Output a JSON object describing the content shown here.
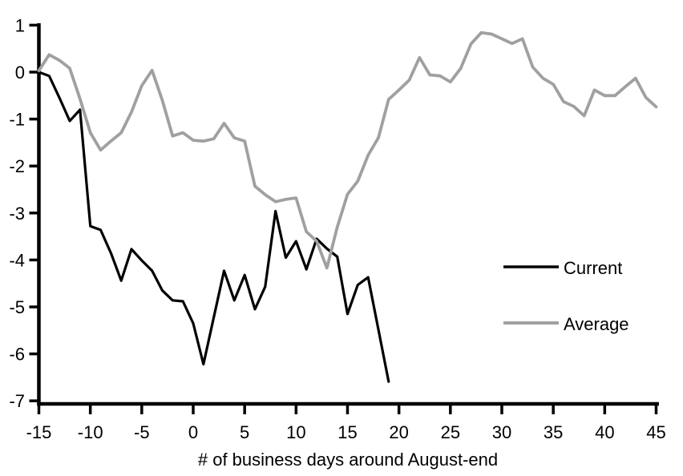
{
  "chart_data": {
    "type": "line",
    "title": "",
    "xlabel": "# of business days around August-end",
    "ylabel": "",
    "xlim": [
      -15,
      45
    ],
    "ylim": [
      -7,
      1
    ],
    "x_ticks": [
      -15,
      -10,
      -5,
      0,
      5,
      10,
      15,
      20,
      25,
      30,
      35,
      40,
      45
    ],
    "y_ticks": [
      1,
      0,
      -1,
      -2,
      -3,
      -4,
      -5,
      -6,
      -7
    ],
    "grid": false,
    "legend_position": "middle-right",
    "series": [
      {
        "name": "Current",
        "color": "#000000",
        "x": [
          -15,
          -14,
          -13,
          -12,
          -11,
          -10,
          -9,
          -8,
          -7,
          -6,
          -5,
          -4,
          -3,
          -2,
          -1,
          0,
          1,
          2,
          3,
          4,
          5,
          6,
          7,
          8,
          9,
          10,
          11,
          12,
          13,
          14,
          15,
          16,
          17,
          18,
          19
        ],
        "values": [
          0.0,
          -0.08,
          -0.55,
          -1.04,
          -0.8,
          -3.28,
          -3.36,
          -3.85,
          -4.44,
          -3.77,
          -4.01,
          -4.23,
          -4.65,
          -4.86,
          -4.88,
          -5.35,
          -6.22,
          -5.22,
          -4.23,
          -4.86,
          -4.32,
          -5.05,
          -4.57,
          -2.96,
          -3.95,
          -3.6,
          -4.2,
          -3.55,
          -3.76,
          -3.93,
          -5.15,
          -4.53,
          -4.37,
          -5.48,
          -6.59
        ]
      },
      {
        "name": "Average",
        "color": "#a0a0a0",
        "x": [
          -15,
          -14,
          -13,
          -12,
          -11,
          -10,
          -9,
          -8,
          -7,
          -6,
          -5,
          -4,
          -3,
          -2,
          -1,
          0,
          1,
          2,
          3,
          4,
          5,
          6,
          7,
          8,
          9,
          10,
          11,
          12,
          13,
          14,
          15,
          16,
          17,
          18,
          19,
          20,
          21,
          22,
          23,
          24,
          25,
          26,
          27,
          28,
          29,
          30,
          31,
          32,
          33,
          34,
          35,
          36,
          37,
          38,
          39,
          40,
          41,
          42,
          43,
          44,
          45
        ],
        "values": [
          0.03,
          0.37,
          0.25,
          0.08,
          -0.57,
          -1.29,
          -1.66,
          -1.47,
          -1.29,
          -0.85,
          -0.29,
          0.04,
          -0.6,
          -1.36,
          -1.29,
          -1.45,
          -1.47,
          -1.42,
          -1.09,
          -1.4,
          -1.47,
          -2.43,
          -2.61,
          -2.76,
          -2.71,
          -2.68,
          -3.4,
          -3.6,
          -4.17,
          -3.3,
          -2.6,
          -2.32,
          -1.77,
          -1.4,
          -0.58,
          -0.38,
          -0.17,
          0.31,
          -0.06,
          -0.08,
          -0.21,
          0.08,
          0.6,
          0.84,
          0.81,
          0.71,
          0.61,
          0.71,
          0.11,
          -0.13,
          -0.26,
          -0.63,
          -0.73,
          -0.93,
          -0.38,
          -0.5,
          -0.5,
          -0.31,
          -0.13,
          -0.54,
          -0.74
        ]
      }
    ]
  },
  "legend": {
    "entries": [
      {
        "label": "Current",
        "color": "#000000"
      },
      {
        "label": "Average",
        "color": "#a0a0a0"
      }
    ]
  },
  "colors": {
    "axis": "#000000",
    "background": "#ffffff"
  }
}
